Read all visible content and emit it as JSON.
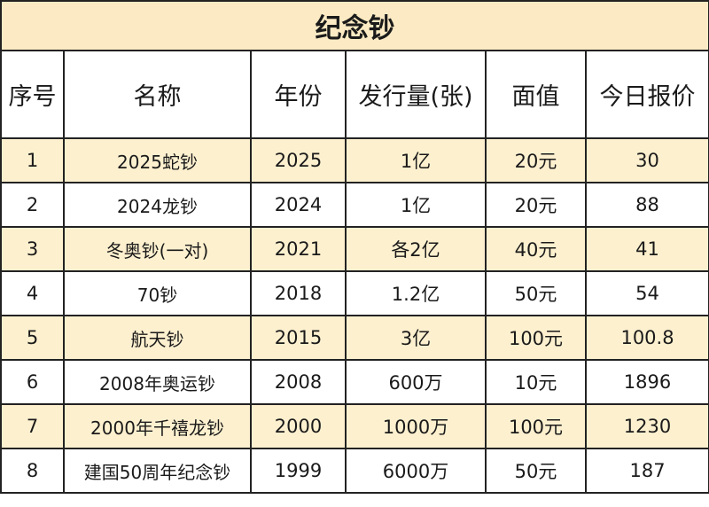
{
  "title": "纪念钞",
  "headers": {
    "index": "序号",
    "name": "名称",
    "year": "年份",
    "issue": "发行量(张)",
    "face": "面值",
    "price": "今日报价"
  },
  "rows": [
    {
      "index": "1",
      "name": "2025蛇钞",
      "year": "2025",
      "issue": "1亿",
      "face": "20元",
      "price": "30"
    },
    {
      "index": "2",
      "name": "2024龙钞",
      "year": "2024",
      "issue": "1亿",
      "face": "20元",
      "price": "88"
    },
    {
      "index": "3",
      "name": "冬奥钞(一对)",
      "year": "2021",
      "issue": "各2亿",
      "face": "40元",
      "price": "41"
    },
    {
      "index": "4",
      "name": "70钞",
      "year": "2018",
      "issue": "1.2亿",
      "face": "50元",
      "price": "54"
    },
    {
      "index": "5",
      "name": "航天钞",
      "year": "2015",
      "issue": "3亿",
      "face": "100元",
      "price": "100.8"
    },
    {
      "index": "6",
      "name": "2008年奥运钞",
      "year": "2008",
      "issue": "600万",
      "face": "10元",
      "price": "1896"
    },
    {
      "index": "7",
      "name": "2000年千禧龙钞",
      "year": "2000",
      "issue": "1000万",
      "face": "100元",
      "price": "1230"
    },
    {
      "index": "8",
      "name": "建国50周年纪念钞",
      "year": "1999",
      "issue": "6000万",
      "face": "50元",
      "price": "187"
    }
  ]
}
